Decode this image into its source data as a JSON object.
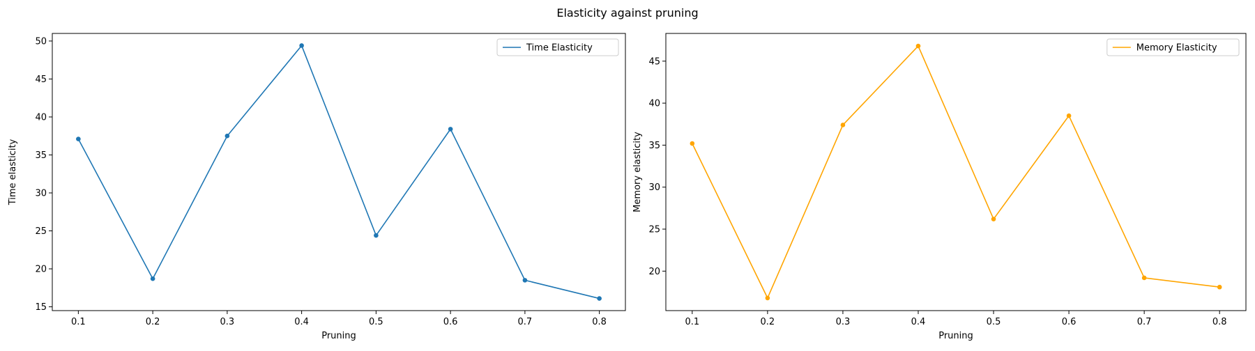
{
  "figure": {
    "suptitle": "Elasticity against pruning"
  },
  "chart_data": [
    {
      "type": "line",
      "xlabel": "Pruning",
      "ylabel": "Time elasticity",
      "x": [
        0.1,
        0.2,
        0.3,
        0.4,
        0.5,
        0.6,
        0.7,
        0.8
      ],
      "xlim": [
        0.065,
        0.835
      ],
      "ylim": [
        14.5,
        51.0
      ],
      "xticks": [
        0.1,
        0.2,
        0.3,
        0.4,
        0.5,
        0.6,
        0.7,
        0.8
      ],
      "yticks": [
        15,
        20,
        25,
        30,
        35,
        40,
        45,
        50
      ],
      "legend_position": "top-right",
      "grid": false,
      "series": [
        {
          "name": "Time Elasticity",
          "color": "#1f77b4",
          "values": [
            37.1,
            18.7,
            37.5,
            49.4,
            24.4,
            38.4,
            18.5,
            16.1
          ]
        }
      ]
    },
    {
      "type": "line",
      "xlabel": "Pruning",
      "ylabel": "Memory elasticity",
      "x": [
        0.1,
        0.2,
        0.3,
        0.4,
        0.5,
        0.6,
        0.7,
        0.8
      ],
      "xlim": [
        0.065,
        0.835
      ],
      "ylim": [
        15.3,
        48.3
      ],
      "xticks": [
        0.1,
        0.2,
        0.3,
        0.4,
        0.5,
        0.6,
        0.7,
        0.8
      ],
      "yticks": [
        20,
        25,
        30,
        35,
        40,
        45
      ],
      "legend_position": "top-right",
      "grid": false,
      "series": [
        {
          "name": "Memory Elasticity",
          "color": "#ffa500",
          "values": [
            35.2,
            16.8,
            37.4,
            46.8,
            26.2,
            38.5,
            19.2,
            18.1
          ]
        }
      ]
    }
  ]
}
